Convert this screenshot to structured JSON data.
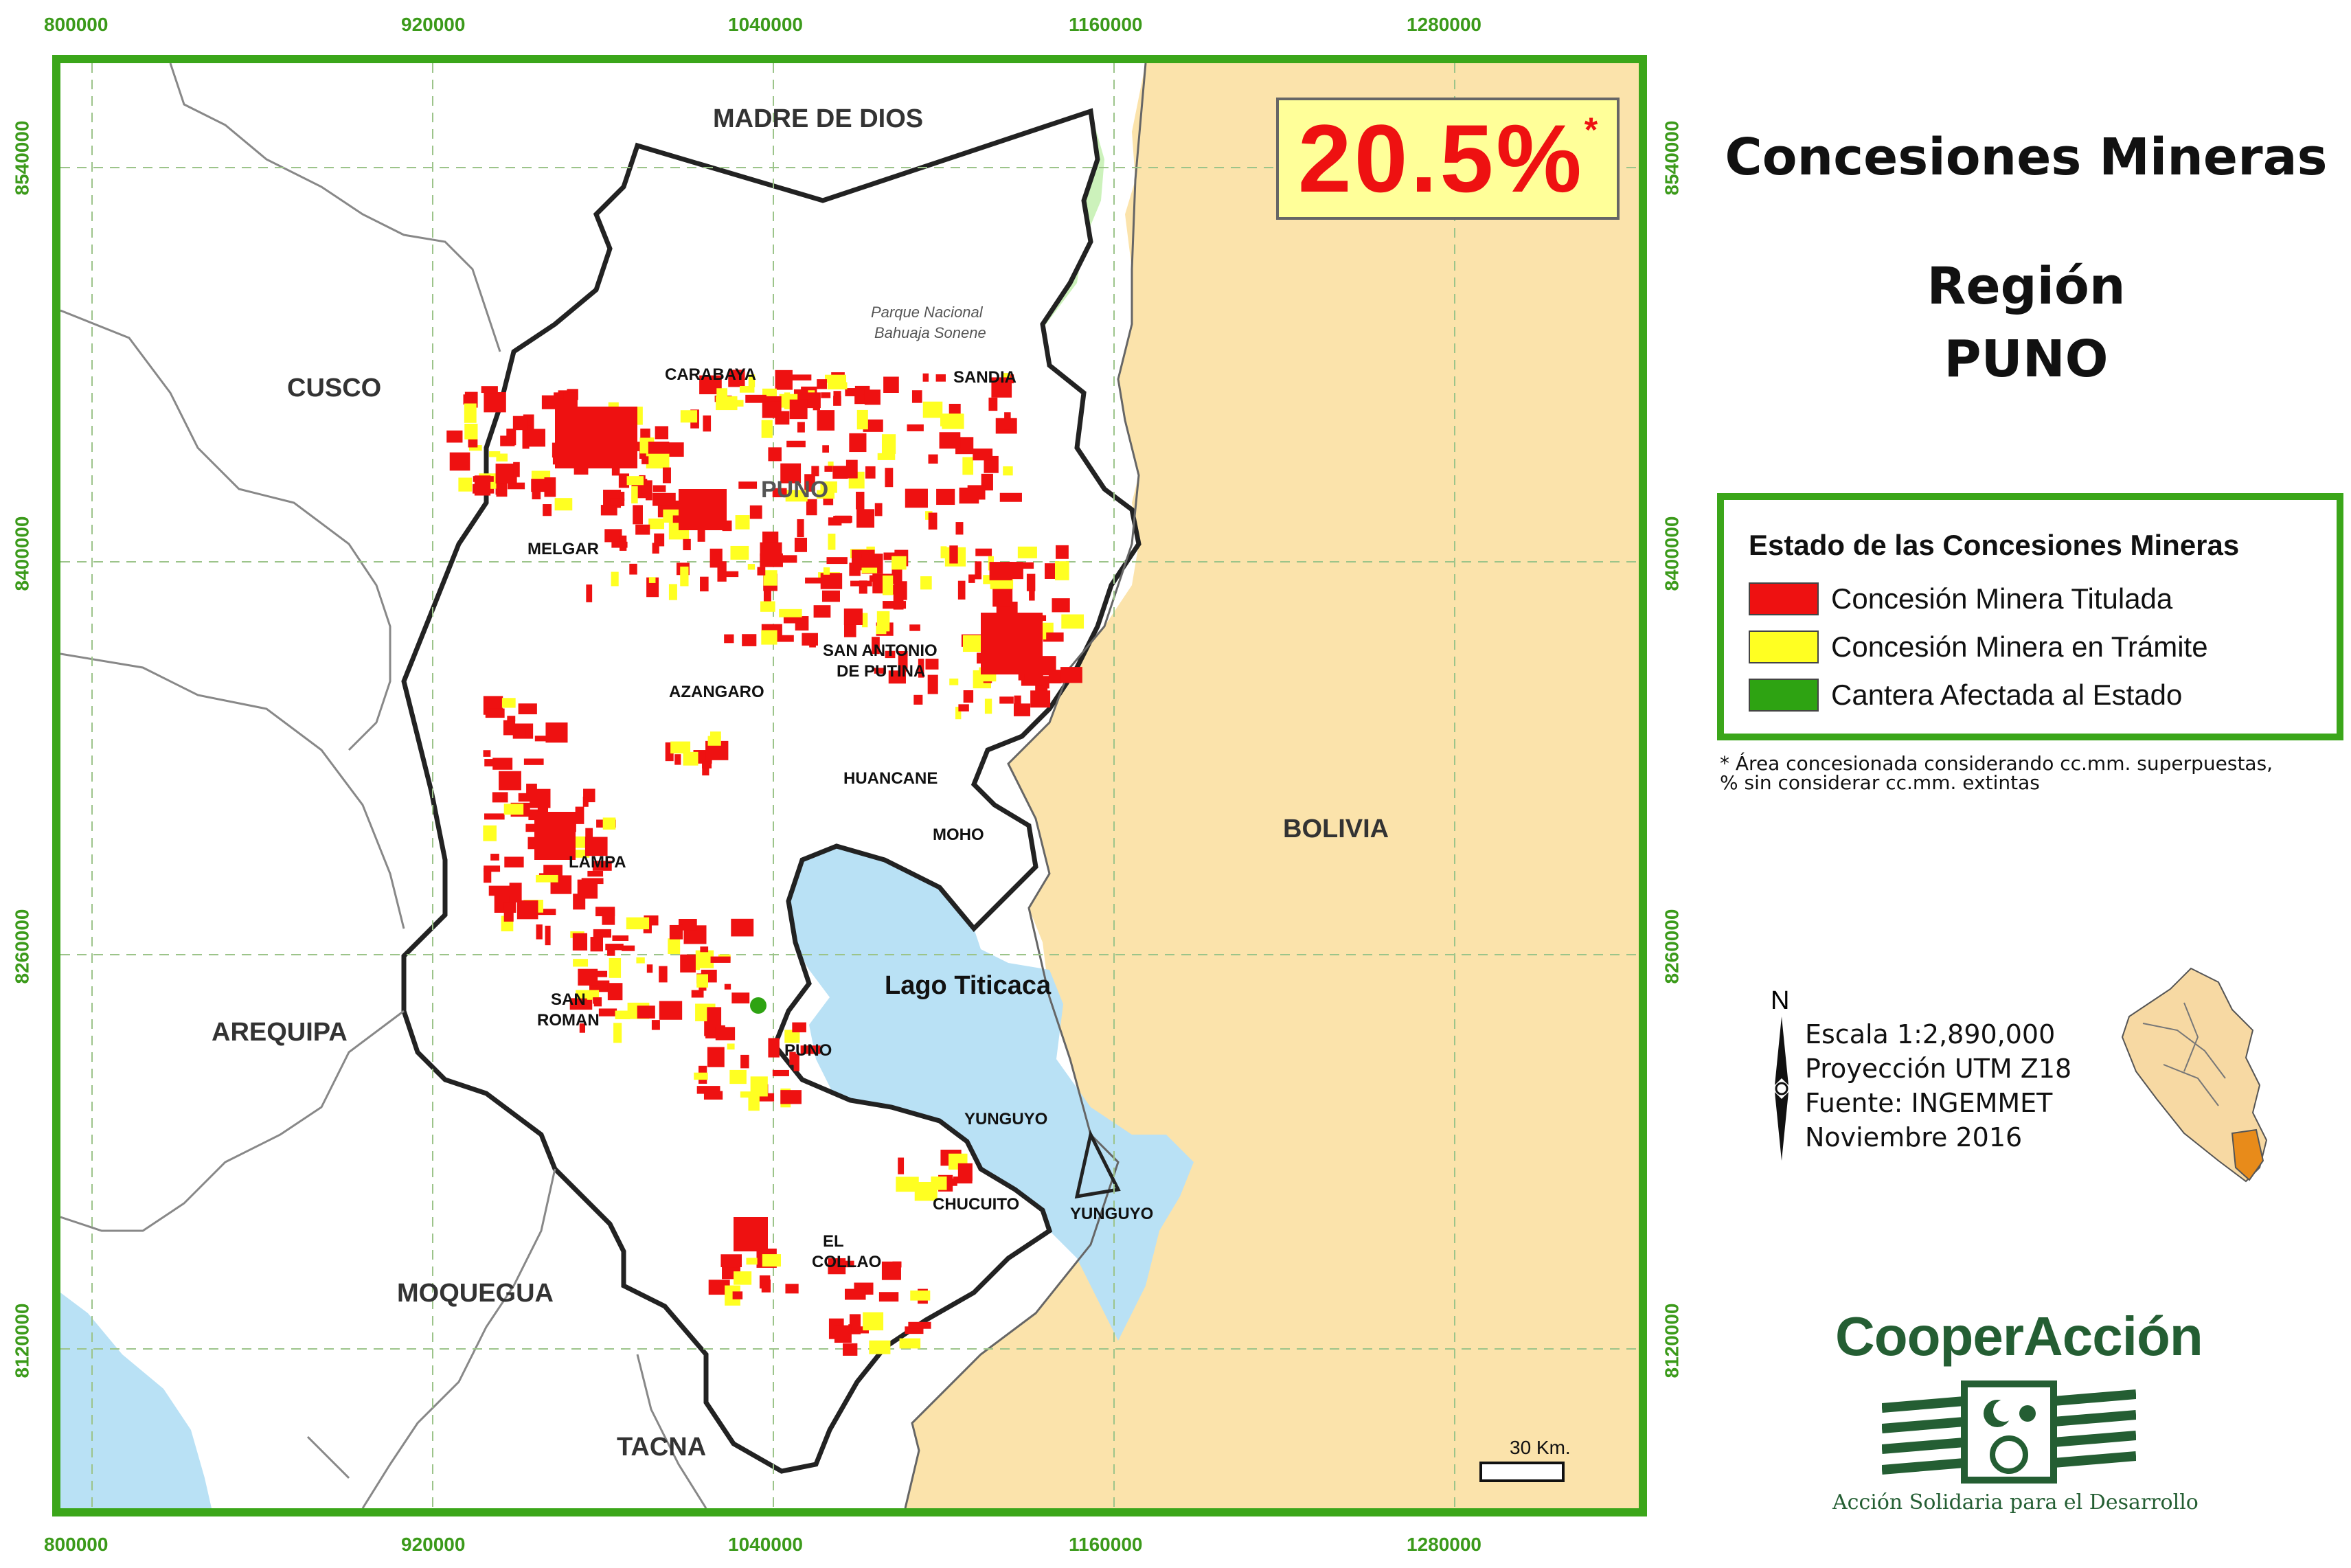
{
  "axis": {
    "x_ticks": [
      "800000",
      "920000",
      "1040000",
      "1160000",
      "1280000"
    ],
    "y_ticks": [
      "8540000",
      "8400000",
      "8260000",
      "8120000"
    ]
  },
  "regions": {
    "madre_de_dios": "MADRE DE DIOS",
    "cusco": "CUSCO",
    "arequipa": "AREQUIPA",
    "moquegua": "MOQUEGUA",
    "tacna": "TACNA",
    "bolivia": "BOLIVIA",
    "lake": "Lago Titicaca"
  },
  "park": {
    "line1": "Parque Nacional",
    "line2": "Bahuaja Sonene"
  },
  "provinces": {
    "carabaya": "CARABAYA",
    "sandia": "SANDIA",
    "puno_map": "PUNO",
    "melgar": "MELGAR",
    "san_antonio_1": "SAN ANTONIO",
    "san_antonio_2": "DE PUTINA",
    "azangaro": "AZANGARO",
    "huancane": "HUANCANE",
    "moho": "MOHO",
    "lampa": "LAMPA",
    "san_roman_1": "SAN",
    "san_roman_2": "ROMAN",
    "puno": "PUNO",
    "yunguyo_top": "YUNGUYO",
    "chucuito": "CHUCUITO",
    "yunguyo": "YUNGUYO",
    "el_collao_1": "EL",
    "el_collao_2": "COLLAO"
  },
  "percentage": {
    "value": "20.5%",
    "marker": "*"
  },
  "title": {
    "line1": "Concesiones Mineras",
    "line2": "Región",
    "line3": "PUNO"
  },
  "legend": {
    "title": "Estado de las Concesiones Mineras",
    "items": [
      {
        "label": "Concesión Minera Titulada",
        "color": "#ee1111"
      },
      {
        "label": "Concesión Minera en Trámite",
        "color": "#ffff22"
      },
      {
        "label": "Cantera Afectada al Estado",
        "color": "#2ea312"
      }
    ]
  },
  "footnote": {
    "line1": "* Área concesionada considerando cc.mm. superpuestas,",
    "line2": "% sin considerar cc.mm. extintas"
  },
  "info": {
    "north": "N",
    "scale": "Escala 1:2,890,000",
    "projection": "Proyección UTM Z18",
    "source": "Fuente: INGEMMET",
    "date": "Noviembre 2016"
  },
  "scalebar": {
    "label": "30 Km."
  },
  "logo": {
    "name": "CooperAcción",
    "tagline": "Acción Solidaria para el Desarrollo"
  },
  "colors": {
    "frame": "#3ba61a",
    "bolivia": "#fbe3ab",
    "lake": "#b9e1f5",
    "park": "#ccf2bb",
    "titulada": "#ee1111",
    "tramite": "#ffff22",
    "cantera": "#2ea312"
  }
}
